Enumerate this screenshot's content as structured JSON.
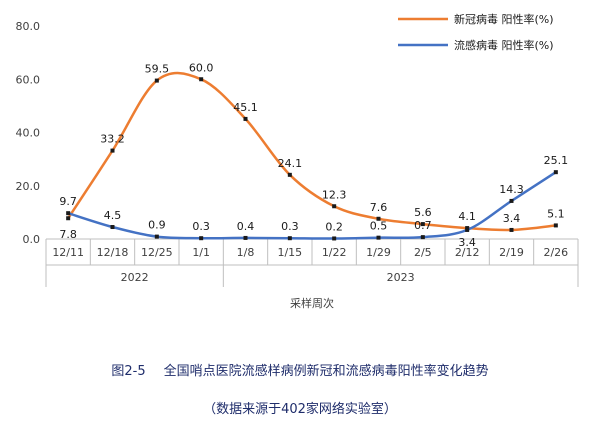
{
  "chart_data": {
    "type": "line",
    "categories": [
      "12/11",
      "12/18",
      "12/25",
      "1/1",
      "1/8",
      "1/15",
      "1/22",
      "1/29",
      "2/5",
      "2/12",
      "2/19",
      "2/26"
    ],
    "year_groups": [
      {
        "label": "2022",
        "start": 0,
        "end": 3
      },
      {
        "label": "2023",
        "start": 4,
        "end": 11
      }
    ],
    "xlabel": "采样周次",
    "ylim": [
      0,
      80
    ],
    "yticks": [
      "0.0",
      "20.0",
      "40.0",
      "60.0",
      "80.0"
    ],
    "grid": false,
    "legend_position": "top-right",
    "series": [
      {
        "name": "新冠病毒 阳性率(%)",
        "color": "#ed7d31",
        "values": [
          7.8,
          33.2,
          59.5,
          60.0,
          45.1,
          24.1,
          12.3,
          7.6,
          5.6,
          4.1,
          3.4,
          5.1
        ],
        "labels": [
          "7.8",
          "33.2",
          "59.5",
          "60.0",
          "45.1",
          "24.1",
          "12.3",
          "7.6",
          "5.6",
          "4.1",
          "3.4",
          "5.1"
        ]
      },
      {
        "name": "流感病毒 阳性率(%)",
        "color": "#4472c4",
        "values": [
          9.7,
          4.5,
          0.9,
          0.3,
          0.4,
          0.3,
          0.2,
          0.5,
          0.7,
          3.4,
          14.3,
          25.1
        ],
        "labels": [
          "9.7",
          "4.5",
          "0.9",
          "0.3",
          "0.4",
          "0.3",
          "0.2",
          "0.5",
          "0.7",
          "3.4",
          "14.3",
          "25.1"
        ]
      }
    ]
  },
  "caption": {
    "figure_no": "图2-5",
    "title": "全国哨点医院流感样病例新冠和流感病毒阳性率变化趋势",
    "source": "（数据来源于402家网络实验室）"
  }
}
